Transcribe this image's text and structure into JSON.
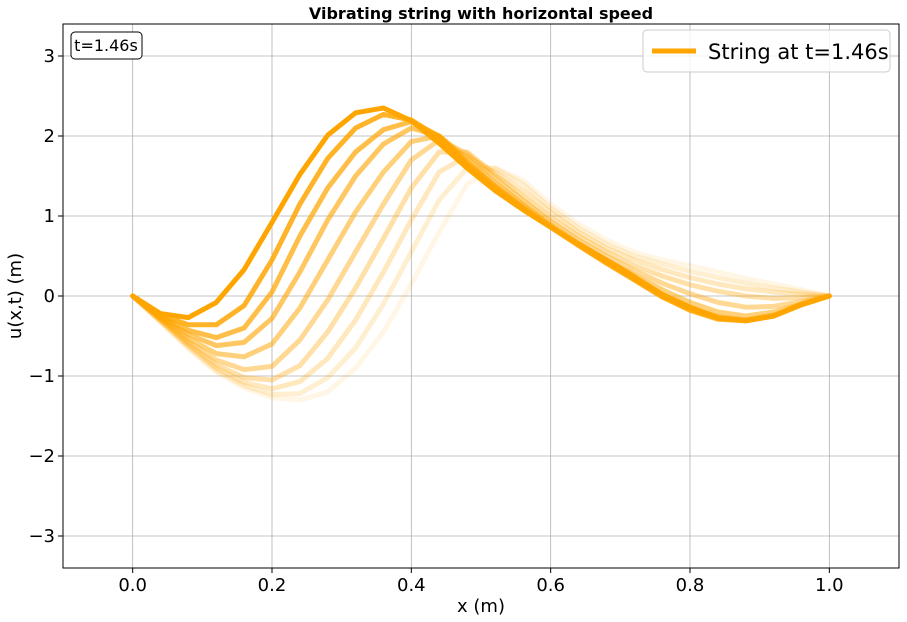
{
  "chart_data": {
    "type": "line",
    "title": "Vibrating string with horizontal speed",
    "xlabel": "x (m)",
    "ylabel": "u(x,t) (m)",
    "xlim": [
      -0.1,
      1.1
    ],
    "ylim": [
      -3.4,
      3.4
    ],
    "x_ticks": [
      0.0,
      0.2,
      0.4,
      0.6,
      0.8,
      1.0
    ],
    "x_tick_labels": [
      "0.0",
      "0.2",
      "0.4",
      "0.6",
      "0.8",
      "1.0"
    ],
    "y_ticks": [
      -3,
      -2,
      -1,
      0,
      1,
      2,
      3
    ],
    "y_tick_labels": [
      "−3",
      "−2",
      "−1",
      "0",
      "1",
      "2",
      "3"
    ],
    "grid": true,
    "time_label": "t=1.46s",
    "legend": {
      "placement": "top-right",
      "entries": [
        "String at t=1.46s"
      ]
    },
    "color": "#FFA500",
    "x": [
      0.0,
      0.04,
      0.08,
      0.12,
      0.16,
      0.2,
      0.24,
      0.28,
      0.32,
      0.36,
      0.4,
      0.44,
      0.48,
      0.52,
      0.56,
      0.6,
      0.64,
      0.68,
      0.72,
      0.76,
      0.8,
      0.84,
      0.88,
      0.92,
      0.96,
      1.0
    ],
    "series": [
      {
        "opacity": 0.1,
        "values": [
          0,
          -0.33,
          -0.66,
          -0.95,
          -1.15,
          -1.27,
          -1.3,
          -1.2,
          -0.9,
          -0.45,
          0.15,
          0.8,
          1.4,
          1.6,
          1.45,
          1.15,
          0.9,
          0.7,
          0.55,
          0.45,
          0.38,
          0.3,
          0.22,
          0.15,
          0.08,
          0
        ]
      },
      {
        "opacity": 0.18,
        "values": [
          0,
          -0.32,
          -0.64,
          -0.93,
          -1.12,
          -1.23,
          -1.22,
          -1.02,
          -0.65,
          -0.1,
          0.55,
          1.2,
          1.6,
          1.6,
          1.4,
          1.1,
          0.85,
          0.65,
          0.5,
          0.4,
          0.31,
          0.23,
          0.16,
          0.1,
          0.05,
          0
        ]
      },
      {
        "opacity": 0.26,
        "values": [
          0,
          -0.31,
          -0.62,
          -0.9,
          -1.08,
          -1.16,
          -1.07,
          -0.78,
          -0.3,
          0.3,
          0.95,
          1.55,
          1.75,
          1.55,
          1.32,
          1.05,
          0.8,
          0.6,
          0.45,
          0.33,
          0.23,
          0.15,
          0.09,
          0.05,
          0.02,
          0
        ]
      },
      {
        "opacity": 0.34,
        "values": [
          0,
          -0.3,
          -0.6,
          -0.86,
          -1.02,
          -1.05,
          -0.87,
          -0.45,
          0.1,
          0.72,
          1.35,
          1.8,
          1.8,
          1.52,
          1.25,
          0.98,
          0.75,
          0.55,
          0.38,
          0.25,
          0.14,
          0.06,
          0.0,
          -0.03,
          -0.02,
          0
        ]
      },
      {
        "opacity": 0.42,
        "values": [
          0,
          -0.29,
          -0.57,
          -0.8,
          -0.92,
          -0.88,
          -0.55,
          -0.05,
          0.55,
          1.15,
          1.7,
          1.95,
          1.78,
          1.48,
          1.2,
          0.93,
          0.7,
          0.5,
          0.32,
          0.16,
          0.03,
          -0.08,
          -0.14,
          -0.13,
          -0.07,
          0
        ]
      },
      {
        "opacity": 0.52,
        "values": [
          0,
          -0.28,
          -0.53,
          -0.72,
          -0.76,
          -0.6,
          -0.15,
          0.45,
          1.05,
          1.55,
          1.93,
          2.0,
          1.72,
          1.42,
          1.15,
          0.89,
          0.66,
          0.45,
          0.26,
          0.08,
          -0.08,
          -0.2,
          -0.25,
          -0.2,
          -0.1,
          0
        ]
      },
      {
        "opacity": 0.62,
        "values": [
          0,
          -0.27,
          -0.48,
          -0.62,
          -0.58,
          -0.28,
          0.3,
          0.95,
          1.5,
          1.9,
          2.1,
          2.0,
          1.68,
          1.38,
          1.12,
          0.87,
          0.64,
          0.42,
          0.21,
          0.02,
          -0.15,
          -0.26,
          -0.3,
          -0.24,
          -0.11,
          0
        ]
      },
      {
        "opacity": 0.72,
        "values": [
          0,
          -0.26,
          -0.43,
          -0.52,
          -0.4,
          0.05,
          0.75,
          1.35,
          1.8,
          2.08,
          2.18,
          2.0,
          1.65,
          1.36,
          1.1,
          0.86,
          0.63,
          0.41,
          0.2,
          -0.01,
          -0.18,
          -0.29,
          -0.31,
          -0.25,
          -0.11,
          0
        ]
      },
      {
        "opacity": 0.84,
        "values": [
          0,
          -0.24,
          -0.36,
          -0.36,
          -0.12,
          0.45,
          1.15,
          1.72,
          2.1,
          2.27,
          2.2,
          1.98,
          1.63,
          1.34,
          1.09,
          0.86,
          0.64,
          0.42,
          0.21,
          -0.01,
          -0.17,
          -0.28,
          -0.31,
          -0.25,
          -0.11,
          0
        ]
      },
      {
        "opacity": 1.0,
        "values": [
          0,
          -0.22,
          -0.27,
          -0.08,
          0.33,
          0.92,
          1.52,
          2.01,
          2.29,
          2.35,
          2.19,
          1.91,
          1.6,
          1.32,
          1.08,
          0.86,
          0.65,
          0.45,
          0.24,
          0.02,
          -0.14,
          -0.27,
          -0.31,
          -0.25,
          -0.1,
          0
        ]
      }
    ]
  }
}
